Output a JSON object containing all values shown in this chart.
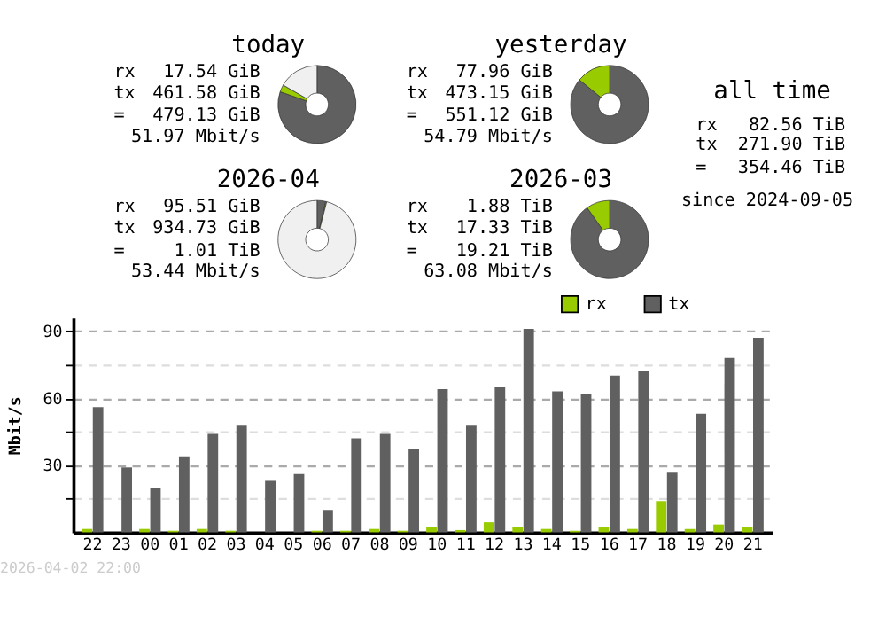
{
  "chart_data": [
    {
      "type": "donut",
      "title": "today",
      "categories": [
        null,
        null,
        null
      ],
      "values": [
        80.3,
        3.0,
        16.7
      ],
      "colors": [
        "#606060",
        "#99cc00",
        "#f0f0f0"
      ],
      "annotations": [
        "rx",
        "17.54 GiB",
        "tx",
        "461.58 GiB",
        "=",
        "479.13 GiB",
        "51.97 Mbit/s"
      ]
    },
    {
      "type": "donut",
      "title": "yesterday",
      "categories": [
        null,
        null
      ],
      "values": [
        85.9,
        14.1
      ],
      "colors": [
        "#606060",
        "#99cc00"
      ],
      "annotations": [
        "rx",
        "77.96 GiB",
        "tx",
        "473.15 GiB",
        "=",
        "551.12 GiB",
        "54.79 Mbit/s"
      ]
    },
    {
      "type": "other",
      "title": "all time",
      "annotations": [
        "rx",
        "82.56 TiB",
        "tx",
        "271.90 TiB",
        "=",
        "354.46 TiB",
        "since 2024-09-05"
      ]
    },
    {
      "type": "donut",
      "title": "2026-04",
      "categories": [
        null,
        null,
        null
      ],
      "values": [
        3.6,
        0.4,
        96.0
      ],
      "colors": [
        "#606060",
        "#99cc00",
        "#f0f0f0"
      ],
      "annotations": [
        "rx",
        "95.51 GiB",
        "tx",
        "934.73 GiB",
        "=",
        "1.01 TiB",
        "53.44 Mbit/s"
      ]
    },
    {
      "type": "donut",
      "title": "2026-03",
      "categories": [
        null,
        null
      ],
      "values": [
        90.2,
        9.8
      ],
      "colors": [
        "#606060",
        "#99cc00"
      ],
      "annotations": [
        "rx",
        "1.88 TiB",
        "tx",
        "17.33 TiB",
        "=",
        "19.21 TiB",
        "63.08 Mbit/s"
      ]
    },
    {
      "type": "bar",
      "ylabel": "Mbit/s",
      "categories": [
        "22",
        "23",
        "00",
        "01",
        "02",
        "03",
        "04",
        "05",
        "06",
        "07",
        "08",
        "09",
        "10",
        "11",
        "12",
        "13",
        "14",
        "15",
        "16",
        "17",
        "18",
        "19",
        "20",
        "21"
      ],
      "series": [
        {
          "name": "rx",
          "color": "#99cc00",
          "values": [
            1.5,
            0,
            1.5,
            0.7,
            1.5,
            0.7,
            0,
            0,
            0.7,
            0.7,
            1.5,
            0.7,
            2.5,
            1,
            4.5,
            2.5,
            1.5,
            0.7,
            2.5,
            1.5,
            14,
            1.5,
            3.5,
            2.5
          ]
        },
        {
          "name": "tx",
          "color": "#606060",
          "values": [
            56,
            29,
            20,
            34,
            44,
            48,
            23,
            26,
            10,
            42,
            44,
            37,
            64,
            48,
            65,
            91,
            63,
            62,
            70,
            72,
            27,
            53,
            78,
            87
          ]
        }
      ],
      "ylim": [
        0,
        96
      ],
      "yticks": [
        {
          "value": 15,
          "label": null
        },
        30,
        {
          "value": 45,
          "label": null
        },
        60,
        {
          "value": 75,
          "label": null
        },
        90
      ],
      "grid": "y",
      "legend": "top right",
      "annotations": [
        "2026-04-02 22:00"
      ]
    }
  ]
}
